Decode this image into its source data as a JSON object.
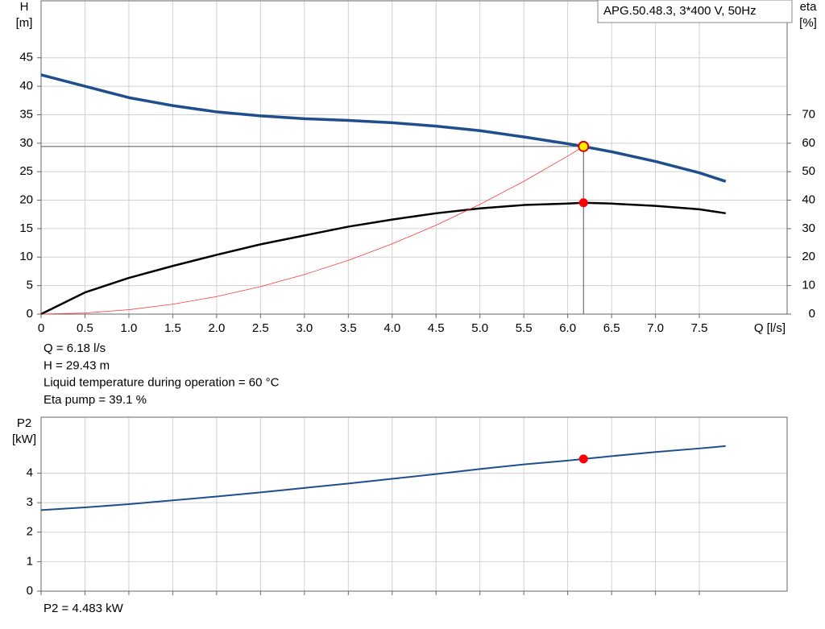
{
  "chart_data": [
    {
      "type": "line",
      "title": "APG.50.48.3, 3*400 V, 50Hz",
      "ylabel": [
        "H",
        "[m]"
      ],
      "y2label": [
        "eta",
        "[%]"
      ],
      "xlabel": "Q [l/s]",
      "xlim": [
        0,
        8.5
      ],
      "xticks": [
        0,
        0.5,
        {
          "value": 1,
          "label": "1.0"
        },
        1.5,
        {
          "value": 2,
          "label": "2.0"
        },
        2.5,
        {
          "value": 3,
          "label": "3.0"
        },
        3.5,
        {
          "value": 4,
          "label": "4.0"
        },
        4.5,
        {
          "value": 5,
          "label": "5.0"
        },
        5.5,
        {
          "value": 6,
          "label": "6.0"
        },
        6.5,
        {
          "value": 7,
          "label": "7.0"
        },
        7.5
      ],
      "ylim": [
        0,
        55
      ],
      "yticks": [
        0,
        5,
        10,
        15,
        20,
        25,
        30,
        35,
        40,
        45
      ],
      "y2lim": [
        0,
        110
      ],
      "y2ticks": [
        0,
        10,
        20,
        30,
        40,
        50,
        60,
        70
      ],
      "grid": true,
      "series": [
        {
          "color": "#1f4e8c",
          "width": 3.5,
          "x": [
            0,
            0.5,
            1,
            1.5,
            2,
            2.5,
            3,
            3.5,
            4,
            4.5,
            5,
            5.5,
            6,
            6.18,
            6.5,
            7,
            7.5,
            7.8
          ],
          "values": [
            42,
            40,
            38,
            36.6,
            35.5,
            34.8,
            34.3,
            34,
            33.6,
            33,
            32.2,
            31.1,
            29.9,
            29.43,
            28.5,
            26.8,
            24.8,
            23.3
          ]
        },
        {
          "color": "#000000",
          "width": 2.5,
          "axis": "y2",
          "x": [
            0,
            0.5,
            1,
            1.5,
            2,
            2.5,
            3,
            3.5,
            4,
            4.5,
            5,
            5.5,
            6,
            6.18,
            6.5,
            7,
            7.5,
            7.8
          ],
          "values": [
            0,
            7.6,
            12.7,
            16.9,
            20.8,
            24.5,
            27.6,
            30.7,
            33.2,
            35.4,
            37.1,
            38.3,
            38.8,
            39.1,
            38.8,
            38,
            36.8,
            35.4
          ]
        },
        {
          "color": "#ff3b3b",
          "width": 0.8,
          "x": [
            0,
            0.5,
            1,
            1.5,
            2,
            2.5,
            3,
            3.5,
            4,
            4.5,
            5,
            5.5,
            6,
            6.18
          ],
          "values": [
            0,
            0.19,
            0.77,
            1.73,
            3.08,
            4.82,
            6.94,
            9.44,
            12.33,
            15.6,
            19.27,
            23.31,
            27.74,
            29.43
          ]
        }
      ],
      "points": [
        {
          "x": 6.18,
          "y": 29.43,
          "color": "#ffee00",
          "stroke": "#e00000",
          "guides": true
        },
        {
          "x": 6.18,
          "y": 39.1,
          "axis": "y2",
          "color": "#ff0000",
          "stroke": "#ff0000"
        }
      ],
      "annotations": [
        "Q = 6.18 l/s",
        "H = 29.43 m",
        "Liquid temperature during operation = 60 °C",
        "Eta pump = 39.1 %"
      ]
    },
    {
      "type": "line",
      "ylabel": [
        "P2",
        "[kW]"
      ],
      "xlim": [
        0,
        8.5
      ],
      "xticks": [
        0,
        0.5,
        1,
        1.5,
        2,
        2.5,
        3,
        3.5,
        4,
        4.5,
        5,
        5.5,
        6,
        6.5,
        7,
        7.5
      ],
      "ylim": [
        0,
        5.9
      ],
      "yticks": [
        0,
        1,
        2,
        3,
        4
      ],
      "grid": true,
      "series": [
        {
          "color": "#1f4e8c",
          "width": 2,
          "x": [
            0,
            0.5,
            1,
            1.5,
            2,
            2.5,
            3,
            3.5,
            4,
            4.5,
            5,
            5.5,
            6,
            6.18,
            6.5,
            7,
            7.5,
            7.8
          ],
          "values": [
            2.75,
            2.84,
            2.95,
            3.08,
            3.21,
            3.35,
            3.5,
            3.65,
            3.81,
            3.97,
            4.14,
            4.3,
            4.43,
            4.483,
            4.58,
            4.72,
            4.84,
            4.92
          ]
        }
      ],
      "points": [
        {
          "x": 6.18,
          "y": 4.483,
          "color": "#ff0000",
          "stroke": "#ff0000"
        }
      ],
      "annotations": [
        "P2 = 4.483 kW"
      ]
    }
  ]
}
